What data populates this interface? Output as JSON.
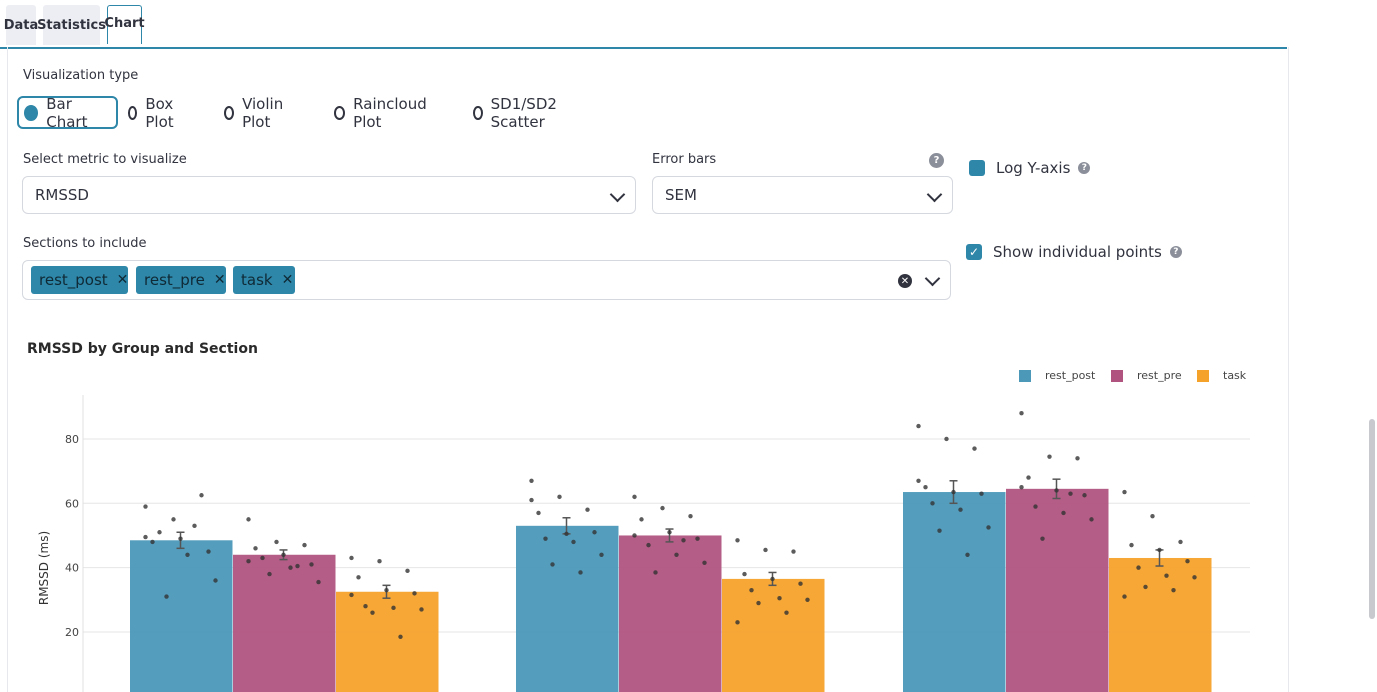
{
  "tabs": [
    "Data",
    "Statistics",
    "Chart"
  ],
  "viz": {
    "label": "Visualization type",
    "options": [
      "Bar Chart",
      "Box Plot",
      "Violin Plot",
      "Raincloud Plot",
      "SD1/SD2 Scatter"
    ],
    "selected": "Bar Chart"
  },
  "metric": {
    "label": "Select metric to visualize",
    "value": "RMSSD"
  },
  "error_bars": {
    "label": "Error bars",
    "value": "SEM"
  },
  "log_y": {
    "label": "Log Y-axis",
    "checked": false
  },
  "show_points": {
    "label": "Show individual points",
    "checked": true
  },
  "sections": {
    "label": "Sections to include",
    "chips": [
      "rest_post",
      "rest_pre",
      "task"
    ]
  },
  "colors": {
    "rest_post": "#4b98b9",
    "rest_pre": "#b0547f",
    "task": "#f5a22b",
    "accent": "#2e86a8"
  },
  "chart_data": {
    "type": "bar",
    "title": "RMSSD by Group and Section",
    "ylabel": "RMSSD (ms)",
    "xlabel": "",
    "ylim": [
      0,
      95
    ],
    "yticks": [
      20,
      40,
      60,
      80
    ],
    "legend_position": "top-right",
    "grid": true,
    "groups": 3,
    "series": [
      {
        "name": "rest_post",
        "values": [
          48.5,
          53,
          63.5
        ],
        "sem": [
          2.5,
          2.5,
          3.5
        ],
        "points": [
          [
            59,
            55,
            62.5,
            48,
            49,
            45,
            51,
            44,
            36,
            31,
            53,
            49.5
          ],
          [
            67,
            62,
            58,
            57,
            50.5,
            51,
            49,
            48,
            44,
            41,
            38.5,
            61
          ],
          [
            84,
            80,
            77,
            65,
            63.5,
            63,
            60,
            58,
            52.5,
            51.5,
            44,
            67
          ]
        ]
      },
      {
        "name": "rest_pre",
        "values": [
          44,
          50,
          64.5
        ],
        "sem": [
          1.5,
          2,
          3
        ],
        "points": [
          [
            55,
            48,
            47,
            46,
            44,
            41,
            43,
            40,
            35.5,
            38,
            40.5,
            42
          ],
          [
            62,
            58.5,
            56,
            55,
            51,
            49,
            47,
            44,
            41.5,
            38.5,
            48.5,
            50
          ],
          [
            88,
            74.5,
            74,
            68,
            64,
            62.5,
            59,
            57,
            55,
            49,
            63,
            65
          ]
        ]
      },
      {
        "name": "task",
        "values": [
          32.5,
          36.5,
          43
        ],
        "sem": [
          2,
          2,
          2.5
        ],
        "points": [
          [
            43,
            42,
            39,
            37,
            33,
            32,
            28,
            27.5,
            27,
            26,
            18.5,
            31.5
          ],
          [
            48.5,
            45.5,
            45,
            38,
            36.5,
            35,
            33,
            30.5,
            30,
            29,
            26,
            23
          ],
          [
            63.5,
            56,
            48,
            47,
            45.5,
            42,
            40,
            37.5,
            37,
            34,
            33,
            31
          ]
        ]
      }
    ]
  }
}
